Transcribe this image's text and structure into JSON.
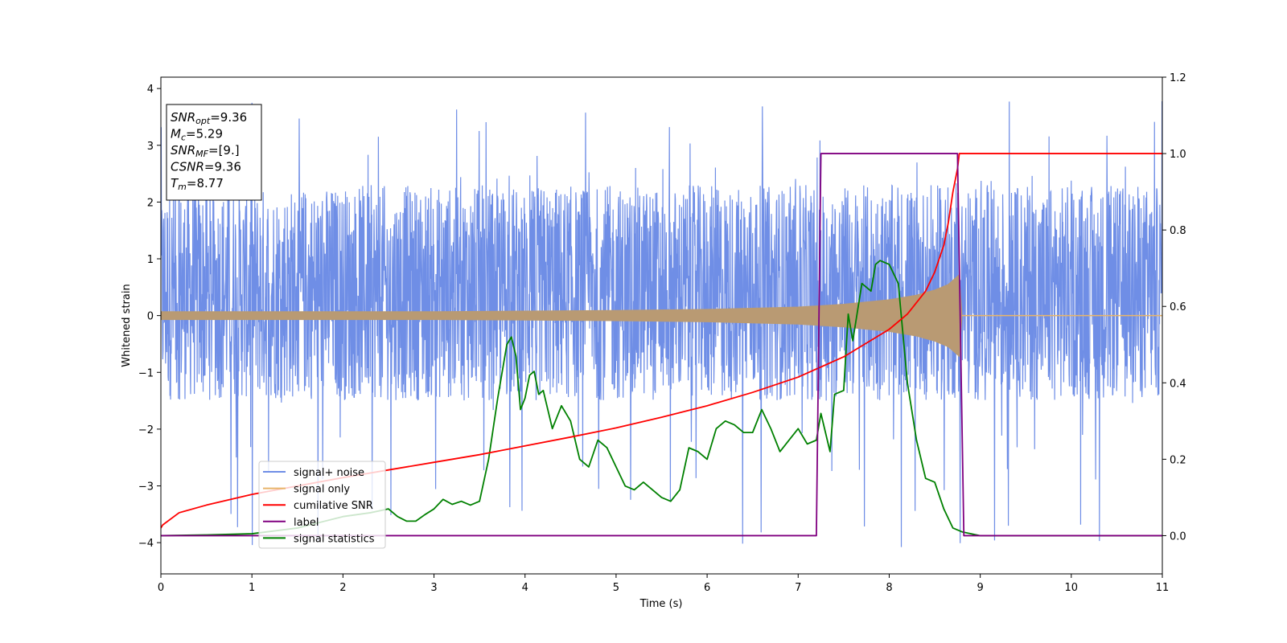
{
  "chart_data": {
    "type": "line",
    "xlabel": "Time (s)",
    "ylabel": "Whitened strain",
    "xlim": [
      0,
      11
    ],
    "ylim": [
      -4.55,
      4.2
    ],
    "y2lim": [
      -0.1,
      1.2
    ],
    "xticks": [
      "0",
      "1",
      "2",
      "3",
      "4",
      "5",
      "6",
      "7",
      "8",
      "9",
      "10",
      "11"
    ],
    "yticks": [
      "−4",
      "−3",
      "−2",
      "−1",
      "0",
      "1",
      "2",
      "3",
      "4"
    ],
    "y2ticks": [
      "0.0",
      "0.2",
      "0.4",
      "0.6",
      "0.8",
      "1.0",
      "1.2"
    ],
    "grid": false,
    "legend_position": "lower-left",
    "info_box": {
      "lines": [
        {
          "sym": "SNR",
          "sub": "opt",
          "value": "=9.36"
        },
        {
          "sym": "M",
          "sub": "c",
          "value": "=5.29"
        },
        {
          "sym": "SNR",
          "sub": "MF",
          "value": "=[9.]"
        },
        {
          "sym": "CSNR",
          "sub": "",
          "value": "=9.36"
        },
        {
          "sym": "T",
          "sub": "m",
          "value": "=8.77"
        }
      ]
    },
    "series": [
      {
        "name": "signal+ noise",
        "axis": "left",
        "color": "#6f8ee6",
        "noise_band": {
          "low": -1.5,
          "high": 2.3,
          "spike_max": 3.8,
          "spike_min": -4.15
        }
      },
      {
        "name": "signal only",
        "axis": "left",
        "color": "#e8b56a",
        "envelope": {
          "x": [
            0,
            1,
            2,
            3,
            4,
            5,
            6,
            7,
            7.5,
            8,
            8.3,
            8.5,
            8.65,
            8.77,
            8.8,
            11
          ],
          "amp": [
            0.07,
            0.07,
            0.07,
            0.07,
            0.08,
            0.09,
            0.11,
            0.15,
            0.2,
            0.28,
            0.36,
            0.45,
            0.55,
            0.72,
            0.0,
            0.0
          ]
        }
      },
      {
        "name": "cumilative SNR",
        "axis": "right",
        "color": "#ff0000",
        "x": [
          0,
          0.02,
          0.2,
          0.5,
          1,
          1.5,
          2,
          2.5,
          3,
          3.5,
          4,
          4.5,
          5,
          5.5,
          6,
          6.5,
          7,
          7.5,
          8,
          8.2,
          8.4,
          8.5,
          8.6,
          8.65,
          8.7,
          8.75,
          8.77,
          9,
          10,
          11
        ],
        "values": [
          0.02,
          0.028,
          0.06,
          0.08,
          0.108,
          0.13,
          0.152,
          0.172,
          0.192,
          0.212,
          0.235,
          0.258,
          0.282,
          0.31,
          0.34,
          0.375,
          0.415,
          0.468,
          0.54,
          0.58,
          0.64,
          0.69,
          0.76,
          0.82,
          0.9,
          0.96,
          1.0,
          1.0,
          1.0,
          1.0
        ]
      },
      {
        "name": "label",
        "axis": "right",
        "color": "#800080",
        "x": [
          0,
          7.2,
          7.25,
          8.75,
          8.82,
          11
        ],
        "values": [
          0,
          0,
          1,
          1,
          0,
          0
        ]
      },
      {
        "name": "signal statistics",
        "axis": "right",
        "color": "#008000",
        "x": [
          0,
          0.5,
          1.0,
          1.5,
          2.0,
          2.3,
          2.5,
          2.6,
          2.7,
          2.8,
          2.9,
          3.0,
          3.1,
          3.2,
          3.3,
          3.4,
          3.5,
          3.6,
          3.7,
          3.8,
          3.85,
          3.9,
          3.95,
          4.0,
          4.05,
          4.1,
          4.15,
          4.2,
          4.3,
          4.4,
          4.5,
          4.6,
          4.7,
          4.8,
          4.9,
          5.0,
          5.1,
          5.2,
          5.3,
          5.4,
          5.5,
          5.6,
          5.7,
          5.8,
          5.9,
          6.0,
          6.1,
          6.2,
          6.3,
          6.4,
          6.5,
          6.6,
          6.7,
          6.8,
          6.9,
          7.0,
          7.1,
          7.2,
          7.25,
          7.3,
          7.35,
          7.4,
          7.5,
          7.55,
          7.6,
          7.7,
          7.8,
          7.85,
          7.9,
          8.0,
          8.1,
          8.2,
          8.3,
          8.4,
          8.5,
          8.6,
          8.7,
          8.8,
          9,
          10,
          11
        ],
        "values": [
          0,
          0.002,
          0.005,
          0.02,
          0.05,
          0.06,
          0.07,
          0.05,
          0.038,
          0.038,
          0.055,
          0.07,
          0.095,
          0.082,
          0.09,
          0.08,
          0.09,
          0.2,
          0.36,
          0.5,
          0.52,
          0.47,
          0.33,
          0.36,
          0.42,
          0.43,
          0.37,
          0.38,
          0.28,
          0.34,
          0.3,
          0.2,
          0.18,
          0.25,
          0.23,
          0.18,
          0.13,
          0.12,
          0.14,
          0.12,
          0.1,
          0.09,
          0.12,
          0.23,
          0.22,
          0.2,
          0.28,
          0.3,
          0.29,
          0.27,
          0.27,
          0.33,
          0.28,
          0.22,
          0.25,
          0.28,
          0.24,
          0.25,
          0.32,
          0.27,
          0.22,
          0.37,
          0.38,
          0.58,
          0.51,
          0.66,
          0.64,
          0.71,
          0.72,
          0.71,
          0.66,
          0.4,
          0.25,
          0.15,
          0.14,
          0.07,
          0.02,
          0.01,
          0,
          0,
          0
        ]
      }
    ]
  }
}
